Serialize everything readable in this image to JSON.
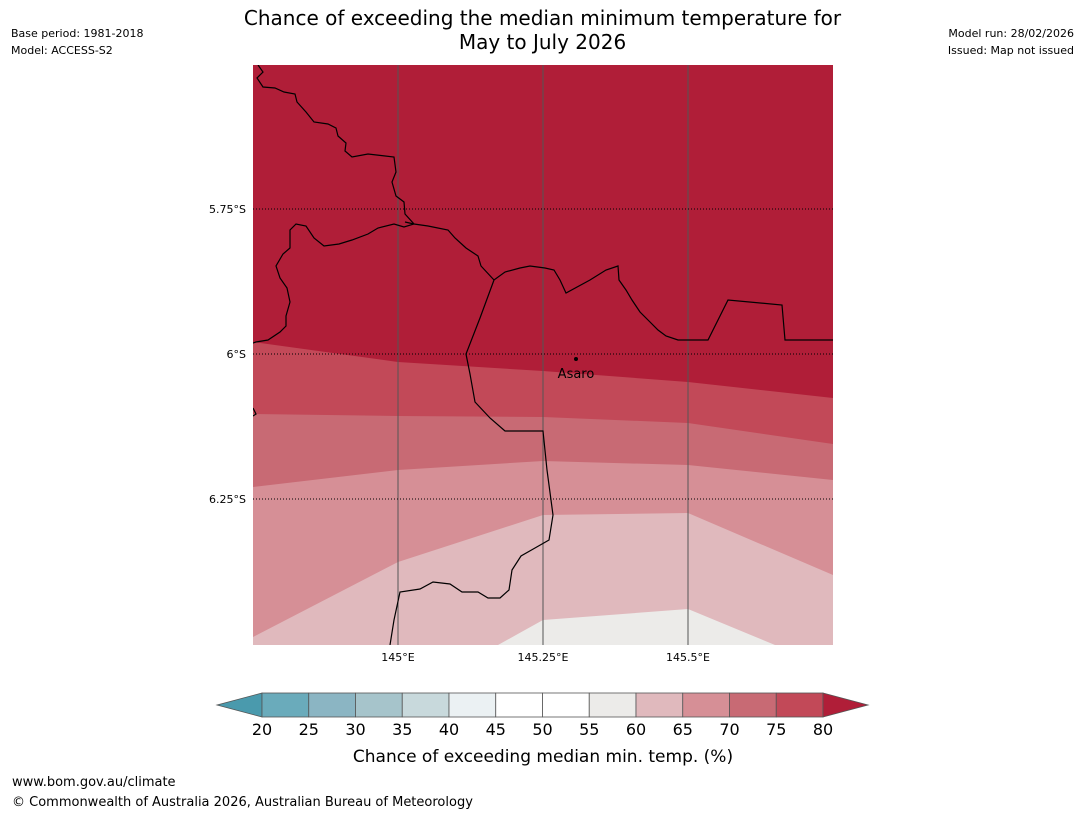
{
  "header": {
    "title_line1": "Chance of exceeding the median minimum temperature for",
    "title_line2": "May to July 2026",
    "base_period": "Base period: 1981-2018",
    "model": "Model: ACCESS-S2",
    "model_run": "Model run: 28/02/2026",
    "issued": "Issued: Map not issued"
  },
  "map": {
    "latitude_labels": [
      "5.75°S",
      "6°S",
      "6.25°S"
    ],
    "longitude_labels": [
      "145°E",
      "145.25°E",
      "145.5°E"
    ],
    "place_label": "Asaro",
    "colors": {
      "band_80_plus": "#b01e38",
      "band_75_80": "#c24958",
      "band_70_75": "#c86a74",
      "band_65_70": "#d68f96",
      "band_60_65": "#e0b9bd",
      "band_55_60": "#ecebe9",
      "border": "#000000",
      "gridline": "#555555"
    }
  },
  "colorbar": {
    "ticks": [
      "20",
      "25",
      "30",
      "35",
      "40",
      "45",
      "50",
      "55",
      "60",
      "65",
      "70",
      "75",
      "80"
    ],
    "colors": [
      "#6aabbb",
      "#8bb5c3",
      "#a6c4cb",
      "#c8d9dc",
      "#ebf1f3",
      "#ffffff",
      "#ffffff",
      "#ecebe9",
      "#e0b9bd",
      "#d68f96",
      "#c86a74",
      "#c24958"
    ],
    "low_extend_color": "#4a9aad",
    "high_extend_color": "#b01e38",
    "title": "Chance of exceeding median min. temp. (%)"
  },
  "footer": {
    "url": "www.bom.gov.au/climate",
    "copyright": "© Commonwealth of Australia 2026, Australian Bureau of Meteorology"
  }
}
